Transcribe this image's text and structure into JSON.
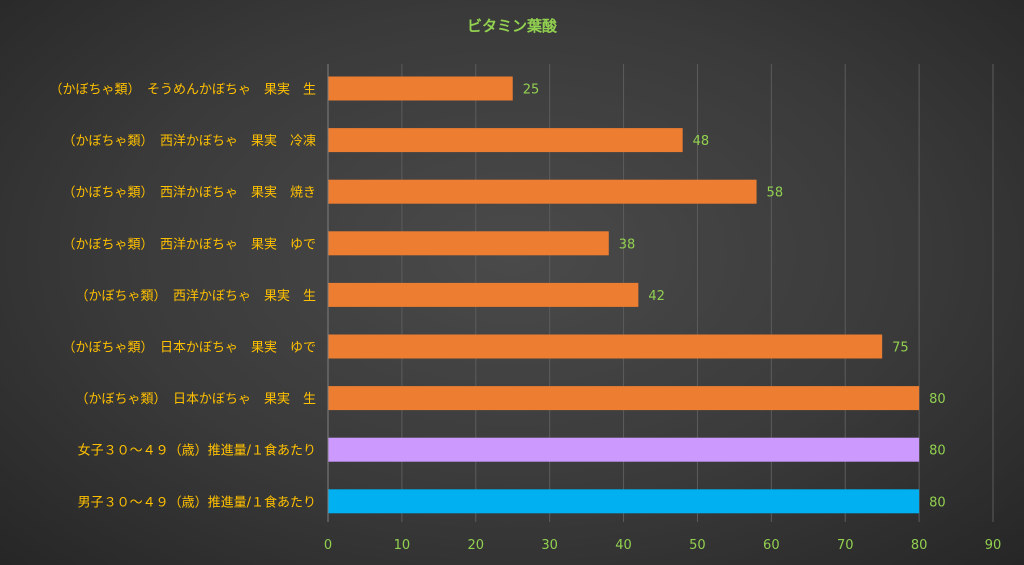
{
  "chart_data": {
    "type": "bar",
    "orientation": "horizontal",
    "title": "ビタミン葉酸",
    "xlabel": "",
    "ylabel": "",
    "xlim": [
      0,
      90
    ],
    "x_ticks": [
      0,
      10,
      20,
      30,
      40,
      50,
      60,
      70,
      80,
      90
    ],
    "grid": "vertical",
    "legend": "none",
    "categories": [
      "（かぼちゃ類）　そうめんかぼちゃ　果実　生",
      "（かぼちゃ類）　西洋かぼちゃ　果実　冷凍",
      "（かぼちゃ類）　西洋かぼちゃ　果実　焼き",
      "（かぼちゃ類）　西洋かぼちゃ　果実　ゆで",
      "（かぼちゃ類）　西洋かぼちゃ　果実　生",
      "（かぼちゃ類）　日本かぼちゃ　果実　ゆで",
      "（かぼちゃ類）　日本かぼちゃ　果実　生",
      "女子３０～４９（歳）推進量/１食あたり",
      "男子３０～４９（歳）推進量/１食あたり"
    ],
    "values": [
      25,
      48,
      58,
      38,
      42,
      75,
      80,
      80,
      80
    ],
    "bar_colors": [
      "#ED7D31",
      "#ED7D31",
      "#ED7D31",
      "#ED7D31",
      "#ED7D31",
      "#ED7D31",
      "#ED7D31",
      "#CC99FF",
      "#00B0F0"
    ],
    "data_labels": [
      "25",
      "48",
      "58",
      "38",
      "42",
      "75",
      "80",
      "80",
      "80"
    ]
  },
  "colors": {
    "title": "#92D050",
    "category_text": "#FFC000",
    "tick_text": "#92D050",
    "data_label_text": "#92D050",
    "gridline": "#5c5c5c",
    "axis_line": "#7f7f7f"
  }
}
